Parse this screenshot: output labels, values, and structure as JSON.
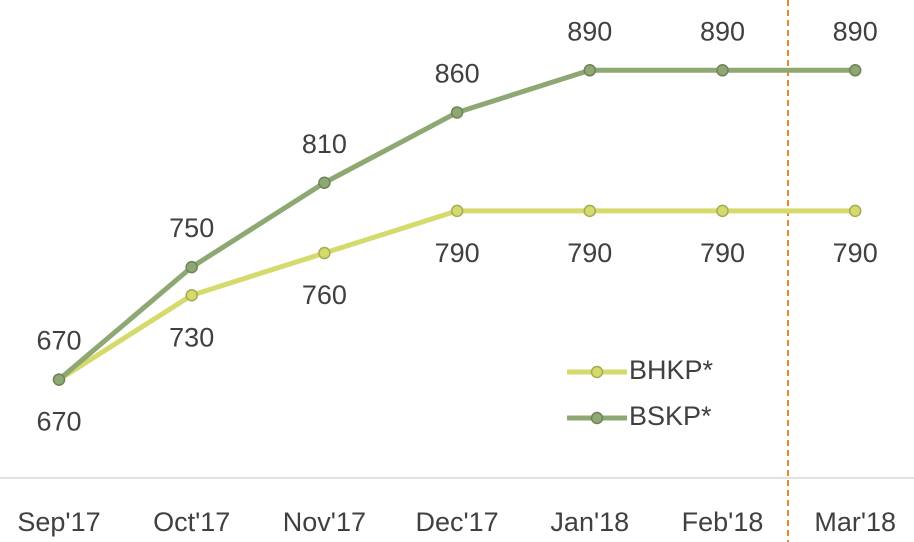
{
  "chart_data": {
    "type": "line",
    "categories": [
      "Sep'17",
      "Oct'17",
      "Nov'17",
      "Dec'17",
      "Jan'18",
      "Feb'18",
      "Mar'18"
    ],
    "series": [
      {
        "name": "BHKP*",
        "color": "#d5da6c",
        "values": [
          670,
          730,
          760,
          790,
          790,
          790,
          790
        ]
      },
      {
        "name": "BSKP*",
        "color": "#8ea873",
        "values": [
          670,
          750,
          810,
          860,
          890,
          890,
          890
        ]
      }
    ],
    "ylim": [
      600,
      940
    ],
    "legend": "lower right"
  }
}
